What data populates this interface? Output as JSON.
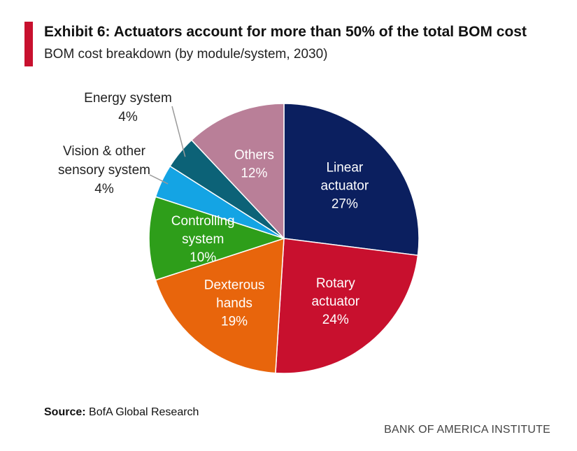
{
  "header": {
    "title": "Exhibit 6: Actuators account for more than 50% of the total BOM cost",
    "subtitle": "BOM cost breakdown (by module/system, 2030)"
  },
  "footer": {
    "source_label": "Source:",
    "source_text": "BofA Global Research",
    "brand": "BANK OF AMERICA INSTITUTE"
  },
  "colors": {
    "accent": "#c8102e"
  },
  "chart_data": {
    "type": "pie",
    "title": "BOM cost breakdown (by module/system, 2030)",
    "unit": "%",
    "slices": [
      {
        "label": [
          "Linear",
          "actuator"
        ],
        "name": "Linear actuator",
        "value": 27,
        "display": "27%",
        "color": "#0b1f5f",
        "label_color": "#ffffff",
        "inside": true
      },
      {
        "label": [
          "Rotary",
          "actuator"
        ],
        "name": "Rotary actuator",
        "value": 24,
        "display": "24%",
        "color": "#c8102e",
        "label_color": "#ffffff",
        "inside": true
      },
      {
        "label": [
          "Dexterous",
          "hands"
        ],
        "name": "Dexterous hands",
        "value": 19,
        "display": "19%",
        "color": "#e8650c",
        "label_color": "#ffffff",
        "inside": true
      },
      {
        "label": [
          "Controlling",
          "system"
        ],
        "name": "Controlling system",
        "value": 10,
        "display": "10%",
        "color": "#2e9e1a",
        "label_color": "#ffffff",
        "inside": true
      },
      {
        "label": [
          "Vision & other",
          "sensory system"
        ],
        "name": "Vision & other sensory system",
        "value": 4,
        "display": "4%",
        "color": "#14a4e4",
        "label_color": "#222222",
        "inside": false
      },
      {
        "label": [
          "Energy system"
        ],
        "name": "Energy system",
        "value": 4,
        "display": "4%",
        "color": "#0c6277",
        "label_color": "#222222",
        "inside": false
      },
      {
        "label": [
          "Others"
        ],
        "name": "Others",
        "value": 12,
        "display": "12%",
        "color": "#b97f98",
        "label_color": "#ffffff",
        "inside": true
      }
    ]
  }
}
